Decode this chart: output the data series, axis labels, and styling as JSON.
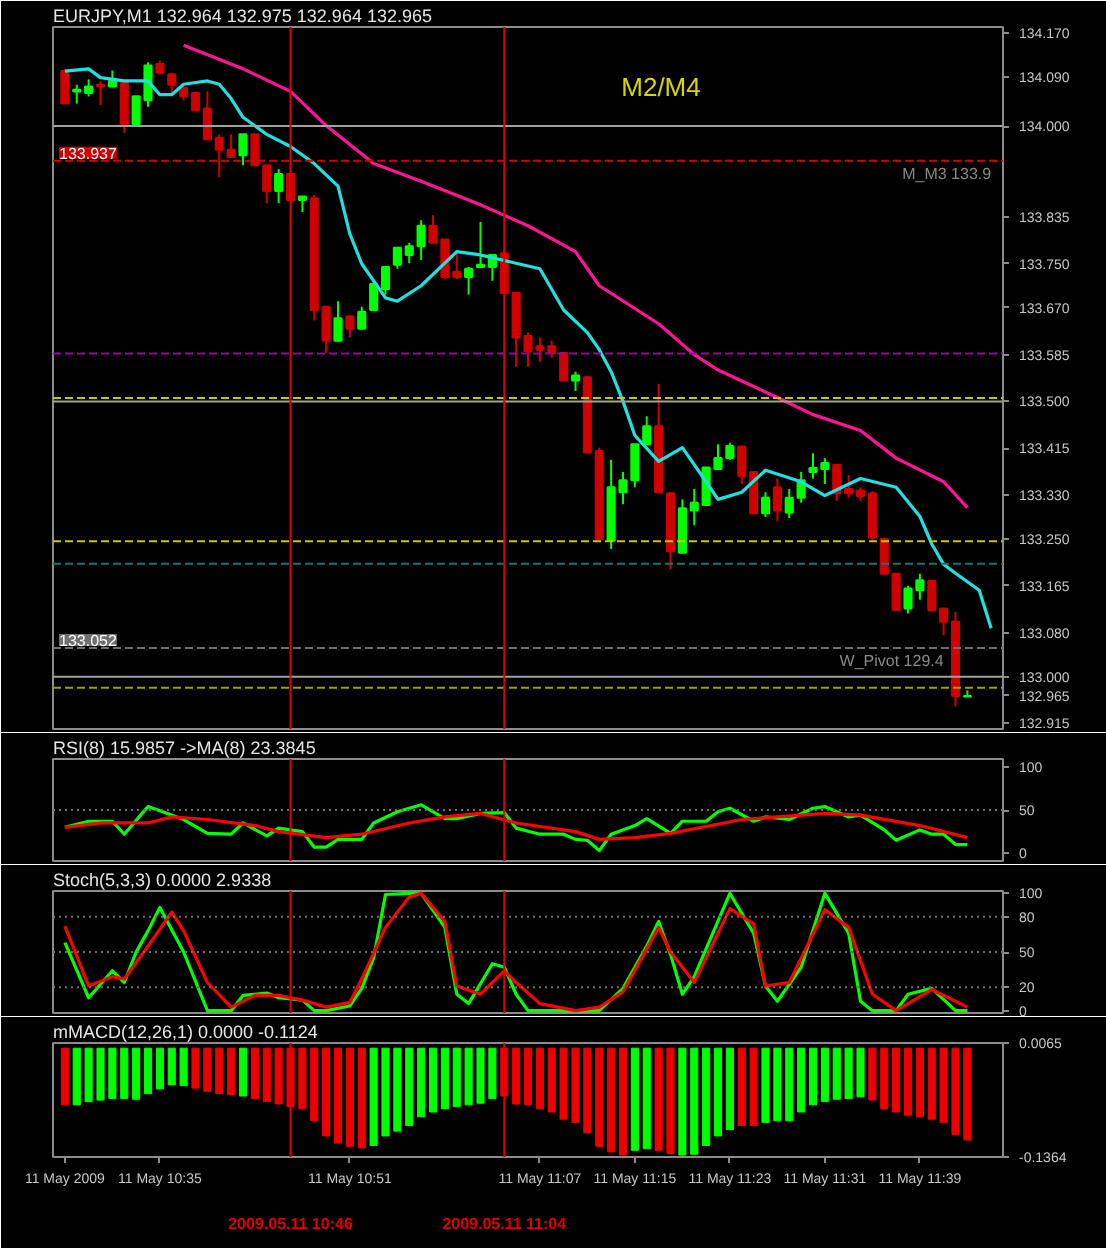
{
  "chart_data": [
    {
      "type": "candlestick",
      "title": "EURJPY,M1  132.964 132.975 132.964 132.965",
      "tick_labels": "y",
      "x": [
        "2009-05-11T10:27",
        "2009-05-11T10:28",
        "2009-05-11T10:29",
        "2009-05-11T10:30",
        "2009-05-11T10:31",
        "2009-05-11T10:32",
        "2009-05-11T10:33",
        "2009-05-11T10:34",
        "2009-05-11T10:35",
        "2009-05-11T10:36",
        "2009-05-11T10:37",
        "2009-05-11T10:38",
        "2009-05-11T10:39",
        "2009-05-11T10:40",
        "2009-05-11T10:41",
        "2009-05-11T10:42",
        "2009-05-11T10:43",
        "2009-05-11T10:44",
        "2009-05-11T10:45",
        "2009-05-11T10:46",
        "2009-05-11T10:47",
        "2009-05-11T10:48",
        "2009-05-11T10:49",
        "2009-05-11T10:50",
        "2009-05-11T10:51",
        "2009-05-11T10:52",
        "2009-05-11T10:53",
        "2009-05-11T10:54",
        "2009-05-11T10:55",
        "2009-05-11T10:56",
        "2009-05-11T10:57",
        "2009-05-11T10:58",
        "2009-05-11T10:59",
        "2009-05-11T11:00",
        "2009-05-11T11:01",
        "2009-05-11T11:02",
        "2009-05-11T11:03",
        "2009-05-11T11:04",
        "2009-05-11T11:05",
        "2009-05-11T11:06",
        "2009-05-11T11:07",
        "2009-05-11T11:08",
        "2009-05-11T11:09",
        "2009-05-11T11:10",
        "2009-05-11T11:11",
        "2009-05-11T11:12",
        "2009-05-11T11:13",
        "2009-05-11T11:14",
        "2009-05-11T11:15",
        "2009-05-11T11:16",
        "2009-05-11T11:17",
        "2009-05-11T11:18",
        "2009-05-11T11:19",
        "2009-05-11T11:20",
        "2009-05-11T11:21",
        "2009-05-11T11:22",
        "2009-05-11T11:23",
        "2009-05-11T11:24",
        "2009-05-11T11:25",
        "2009-05-11T11:26",
        "2009-05-11T11:27",
        "2009-05-11T11:28",
        "2009-05-11T11:29",
        "2009-05-11T11:30",
        "2009-05-11T11:31",
        "2009-05-11T11:32",
        "2009-05-11T11:33",
        "2009-05-11T11:34",
        "2009-05-11T11:35",
        "2009-05-11T11:36",
        "2009-05-11T11:37",
        "2009-05-11T11:38",
        "2009-05-11T11:39",
        "2009-05-11T11:40",
        "2009-05-11T11:41",
        "2009-05-11T11:42",
        "2009-05-11T11:43"
      ],
      "ohlc": [
        [
          134.1,
          134.103,
          134.041,
          134.041
        ],
        [
          134.063,
          134.075,
          134.041,
          134.066
        ],
        [
          134.06,
          134.085,
          134.054,
          134.072
        ],
        [
          134.075,
          134.082,
          134.038,
          134.072
        ],
        [
          134.072,
          134.101,
          134.072,
          134.082
        ],
        [
          134.079,
          134.079,
          133.988,
          134.004
        ],
        [
          134.004,
          134.054,
          134.001,
          134.054
        ],
        [
          134.047,
          134.116,
          134.035,
          134.11
        ],
        [
          134.113,
          134.119,
          134.094,
          134.097
        ],
        [
          134.094,
          134.097,
          134.06,
          134.075
        ],
        [
          134.069,
          134.072,
          134.047,
          134.054
        ],
        [
          134.06,
          134.063,
          134.029,
          134.029
        ],
        [
          134.032,
          134.063,
          133.976,
          133.976
        ],
        [
          133.979,
          133.985,
          133.907,
          133.957
        ],
        [
          133.957,
          133.985,
          133.944,
          133.944
        ],
        [
          133.947,
          133.985,
          133.929,
          133.985
        ],
        [
          133.985,
          133.985,
          133.929,
          133.929
        ],
        [
          133.929,
          133.929,
          133.86,
          133.882
        ],
        [
          133.882,
          133.922,
          133.86,
          133.913
        ],
        [
          133.913,
          133.913,
          133.866,
          133.866
        ],
        [
          133.866,
          133.872,
          133.844,
          133.872
        ],
        [
          133.869,
          133.875,
          133.647,
          133.666
        ],
        [
          133.672,
          133.672,
          133.588,
          133.61
        ],
        [
          133.61,
          133.682,
          133.61,
          133.651
        ],
        [
          133.654,
          133.657,
          133.616,
          133.632
        ],
        [
          133.632,
          133.672,
          133.632,
          133.663
        ],
        [
          133.666,
          133.713,
          133.666,
          133.713
        ],
        [
          133.704,
          133.744,
          133.694,
          133.744
        ],
        [
          133.748,
          133.779,
          133.741,
          133.779
        ],
        [
          133.766,
          133.788,
          133.751,
          133.782
        ],
        [
          133.782,
          133.829,
          133.757,
          133.819
        ],
        [
          133.819,
          133.838,
          133.788,
          133.788
        ],
        [
          133.794,
          133.794,
          133.722,
          133.726
        ],
        [
          133.735,
          133.772,
          133.722,
          133.726
        ],
        [
          133.726,
          133.744,
          133.694,
          133.741
        ],
        [
          133.744,
          133.826,
          133.744,
          133.748
        ],
        [
          133.744,
          133.766,
          133.719,
          133.766
        ],
        [
          133.769,
          133.769,
          133.697,
          133.697
        ],
        [
          133.697,
          133.697,
          133.563,
          133.616
        ],
        [
          133.619,
          133.625,
          133.563,
          133.591
        ],
        [
          133.6,
          133.616,
          133.572,
          133.594
        ],
        [
          133.6,
          133.61,
          133.579,
          133.588
        ],
        [
          133.588,
          133.588,
          133.538,
          133.538
        ],
        [
          133.538,
          133.554,
          133.519,
          133.547
        ],
        [
          133.544,
          133.544,
          133.407,
          133.407
        ],
        [
          133.41,
          133.416,
          133.25,
          133.25
        ],
        [
          133.247,
          133.394,
          133.232,
          133.344
        ],
        [
          133.335,
          133.372,
          133.313,
          133.357
        ],
        [
          133.357,
          133.422,
          133.344,
          133.422
        ],
        [
          133.422,
          133.473,
          133.422,
          133.455
        ],
        [
          133.455,
          133.532,
          133.335,
          133.335
        ],
        [
          133.333,
          133.333,
          133.195,
          133.228
        ],
        [
          133.225,
          133.322,
          133.225,
          133.306
        ],
        [
          133.302,
          133.341,
          133.275,
          133.316
        ],
        [
          133.312,
          133.38,
          133.312,
          133.38
        ],
        [
          133.377,
          133.422,
          133.377,
          133.397
        ],
        [
          133.397,
          133.425,
          133.394,
          133.419
        ],
        [
          133.418,
          133.418,
          133.35,
          133.364
        ],
        [
          133.372,
          133.372,
          133.297,
          133.297
        ],
        [
          133.297,
          133.335,
          133.29,
          133.325
        ],
        [
          133.344,
          133.36,
          133.282,
          133.302
        ],
        [
          133.298,
          133.341,
          133.288,
          133.325
        ],
        [
          133.325,
          133.372,
          133.316,
          133.357
        ],
        [
          133.372,
          133.406,
          133.36,
          133.379
        ],
        [
          133.377,
          133.397,
          133.35,
          133.388
        ],
        [
          133.385,
          133.385,
          133.319,
          133.333
        ],
        [
          133.341,
          133.366,
          133.325,
          133.333
        ],
        [
          133.338,
          133.344,
          133.319,
          133.328
        ],
        [
          133.333,
          133.337,
          133.245,
          133.253
        ],
        [
          133.25,
          133.25,
          133.187,
          133.187
        ],
        [
          133.187,
          133.187,
          133.121,
          133.121
        ],
        [
          133.124,
          133.165,
          133.115,
          133.16
        ],
        [
          133.157,
          133.187,
          133.14,
          133.175
        ],
        [
          133.174,
          133.174,
          133.121,
          133.121
        ],
        [
          133.124,
          133.124,
          133.075,
          133.1
        ],
        [
          133.1,
          133.118,
          132.946,
          132.965
        ],
        [
          132.964,
          132.975,
          132.964,
          132.965
        ]
      ],
      "colors": [
        "#d00000",
        "#00ff00",
        "#00ff00",
        "#d00000",
        "#00ff00",
        "#d00000",
        "#00ff00",
        "#00ff00",
        "#d00000",
        "#d00000",
        "#d00000",
        "#d00000",
        "#d00000",
        "#d00000",
        "#d00000",
        "#00ff00",
        "#d00000",
        "#d00000",
        "#00ff00",
        "#d00000",
        "#00ff00",
        "#d00000",
        "#d00000",
        "#00ff00",
        "#d00000",
        "#00ff00",
        "#00ff00",
        "#00ff00",
        "#00ff00",
        "#00ff00",
        "#00ff00",
        "#d00000",
        "#d00000",
        "#d00000",
        "#00ff00",
        "#00ff00",
        "#00ff00",
        "#d00000",
        "#d00000",
        "#d00000",
        "#d00000",
        "#d00000",
        "#d00000",
        "#00ff00",
        "#d00000",
        "#d00000",
        "#00ff00",
        "#00ff00",
        "#00ff00",
        "#00ff00",
        "#d00000",
        "#d00000",
        "#00ff00",
        "#00ff00",
        "#00ff00",
        "#00ff00",
        "#00ff00",
        "#d00000",
        "#d00000",
        "#00ff00",
        "#d00000",
        "#00ff00",
        "#00ff00",
        "#00ff00",
        "#00ff00",
        "#d00000",
        "#d00000",
        "#d00000",
        "#d00000",
        "#d00000",
        "#d00000",
        "#00ff00",
        "#00ff00",
        "#d00000",
        "#d00000",
        "#d00000",
        "#00ff00"
      ],
      "series": [
        {
          "type": "line",
          "color": "#20e0e0",
          "x": [
            "2009-05-11T10:27",
            "2009-05-11T10:29",
            "2009-05-11T10:30",
            "2009-05-11T10:32",
            "2009-05-11T10:34",
            "2009-05-11T10:35",
            "2009-05-11T10:36",
            "2009-05-11T10:37",
            "2009-05-11T10:39",
            "2009-05-11T10:40",
            "2009-05-11T10:41",
            "2009-05-11T10:42",
            "2009-05-11T10:44",
            "2009-05-11T10:46",
            "2009-05-11T10:48",
            "2009-05-11T10:50",
            "2009-05-11T10:51",
            "2009-05-11T10:52",
            "2009-05-11T10:54",
            "2009-05-11T10:55",
            "2009-05-11T10:57",
            "2009-05-11T11:00",
            "2009-05-11T11:02",
            "2009-05-11T11:05",
            "2009-05-11T11:07",
            "2009-05-11T11:09",
            "2009-05-11T11:11",
            "2009-05-11T11:12",
            "2009-05-11T11:13",
            "2009-05-11T11:14",
            "2009-05-11T11:15",
            "2009-05-11T11:17",
            "2009-05-11T11:19",
            "2009-05-11T11:21",
            "2009-05-11T11:22",
            "2009-05-11T11:24",
            "2009-05-11T11:26",
            "2009-05-11T11:29",
            "2009-05-11T11:31",
            "2009-05-11T11:34",
            "2009-05-11T11:37",
            "2009-05-11T11:39",
            "2009-05-11T11:40",
            "2009-05-11T11:41",
            "2009-05-11T11:42",
            "2009-05-11T11:44",
            "2009-05-11T11:45"
          ],
          "values": [
            134.1,
            134.104,
            134.088,
            134.082,
            134.082,
            134.057,
            134.057,
            134.076,
            134.082,
            134.076,
            134.05,
            134.016,
            133.985,
            133.963,
            133.932,
            133.891,
            133.804,
            133.75,
            133.688,
            133.682,
            133.71,
            133.772,
            133.766,
            133.751,
            133.741,
            133.666,
            133.625,
            133.594,
            133.554,
            133.5,
            133.438,
            133.391,
            133.416,
            133.354,
            133.322,
            133.335,
            133.375,
            133.354,
            133.329,
            133.36,
            133.344,
            133.291,
            133.241,
            133.204,
            133.188,
            133.157,
            133.088
          ]
        },
        {
          "type": "line",
          "color": "#ff1493",
          "x": [
            "2009-05-11T10:37",
            "2009-05-11T10:42",
            "2009-05-11T10:46",
            "2009-05-11T10:49",
            "2009-05-11T10:53",
            "2009-05-11T10:57",
            "2009-05-11T11:02",
            "2009-05-11T11:06",
            "2009-05-11T11:10",
            "2009-05-11T11:12",
            "2009-05-11T11:17",
            "2009-05-11T11:20",
            "2009-05-11T11:22",
            "2009-05-11T11:27",
            "2009-05-11T11:30",
            "2009-05-11T11:34",
            "2009-05-11T11:37",
            "2009-05-11T11:41",
            "2009-05-11T11:43"
          ],
          "values": [
            134.147,
            134.104,
            134.063,
            134.001,
            133.932,
            133.9,
            133.857,
            133.819,
            133.772,
            133.71,
            133.641,
            133.585,
            133.557,
            133.507,
            133.476,
            133.447,
            133.397,
            133.354,
            133.307
          ]
        }
      ],
      "xlim": [
        "2009-05-11T10:26",
        "2009-05-11T11:46"
      ],
      "ylim": [
        132.905,
        134.18
      ],
      "yticks": [
        {
          "value": 134.17,
          "label": "134.170"
        },
        {
          "value": 134.09,
          "label": "134.090"
        },
        {
          "value": 134.0,
          "label": "134.000"
        },
        {
          "value": 133.835,
          "label": "133.835"
        },
        {
          "value": 133.75,
          "label": "133.750"
        },
        {
          "value": 133.67,
          "label": "133.670"
        },
        {
          "value": 133.585,
          "label": "133.585"
        },
        {
          "value": 133.5,
          "label": "133.500"
        },
        {
          "value": 133.415,
          "label": "133.415"
        },
        {
          "value": 133.33,
          "label": "133.330"
        },
        {
          "value": 133.25,
          "label": "133.250"
        },
        {
          "value": 133.165,
          "label": "133.165"
        },
        {
          "value": 133.08,
          "label": "133.080"
        },
        {
          "value": 133.0,
          "label": "133.000"
        },
        {
          "value": 132.965,
          "label": "132.965"
        },
        {
          "value": 132.915,
          "label": "132.915"
        }
      ],
      "ref_lines": [
        {
          "axis": "y",
          "value": 134.0,
          "color": "#a0a0a0",
          "line_style": "solid"
        },
        {
          "axis": "y",
          "value": 133.5,
          "color": "#a0a0a0",
          "line_style": "solid"
        },
        {
          "axis": "y",
          "value": 133.0,
          "color": "#a0a0a0",
          "line_style": "solid"
        },
        {
          "axis": "y",
          "value": 133.937,
          "label": "133.937",
          "color": "#d00000",
          "line_style": "dashed"
        },
        {
          "axis": "y",
          "value": 133.587,
          "color": "#a000a0",
          "line_style": "dashed"
        },
        {
          "axis": "y",
          "value": 133.506,
          "color": "#c8c800",
          "line_style": "dashed"
        },
        {
          "axis": "y",
          "value": 133.246,
          "color": "#c8c800",
          "line_style": "dashed"
        },
        {
          "axis": "y",
          "value": 133.205,
          "color": "#207070",
          "line_style": "dashed"
        },
        {
          "axis": "y",
          "value": 133.052,
          "label": "133.052",
          "color": "#707070",
          "line_style": "dashed"
        },
        {
          "axis": "y",
          "value": 132.98,
          "color": "#a0a000",
          "line_style": "dashed"
        },
        {
          "axis": "x",
          "value": "2009-05-11T10:46",
          "color": "#e00000",
          "line_style": "solid"
        },
        {
          "axis": "x",
          "value": "2009-05-11T11:04",
          "color": "#e00000",
          "line_style": "solid"
        }
      ],
      "annotations": [
        "M2/M4",
        {
          "text": "M_M3 133.9",
          "x": "2009-05-11T11:45",
          "y": 133.93
        },
        {
          "text": "W_Pivot 129.4",
          "x": "2009-05-11T11:41",
          "y": 133.045
        }
      ]
    },
    {
      "type": "line",
      "title": "RSI(8) 15.9857  ->MA(8) 23.3845",
      "tick_labels": "y",
      "xlim": [
        "2009-05-11T10:26",
        "2009-05-11T11:46"
      ],
      "ylim": [
        -9,
        109
      ],
      "yticks": [
        0,
        50,
        100
      ],
      "series": [
        {
          "color": "#00ff00",
          "x": [
            "2009-05-11T10:27",
            "2009-05-11T10:29",
            "2009-05-11T10:31",
            "2009-05-11T10:32",
            "2009-05-11T10:34",
            "2009-05-11T10:35",
            "2009-05-11T10:37",
            "2009-05-11T10:39",
            "2009-05-11T10:41",
            "2009-05-11T10:42",
            "2009-05-11T10:44",
            "2009-05-11T10:45",
            "2009-05-11T10:47",
            "2009-05-11T10:48",
            "2009-05-11T10:49",
            "2009-05-11T10:50",
            "2009-05-11T10:52",
            "2009-05-11T10:53",
            "2009-05-11T10:55",
            "2009-05-11T10:57",
            "2009-05-11T10:59",
            "2009-05-11T11:00",
            "2009-05-11T11:02",
            "2009-05-11T11:04",
            "2009-05-11T11:05",
            "2009-05-11T11:07",
            "2009-05-11T11:09",
            "2009-05-11T11:10",
            "2009-05-11T11:11",
            "2009-05-11T11:12",
            "2009-05-11T11:13",
            "2009-05-11T11:15",
            "2009-05-11T11:16",
            "2009-05-11T11:18",
            "2009-05-11T11:19",
            "2009-05-11T11:21",
            "2009-05-11T11:22",
            "2009-05-11T11:23",
            "2009-05-11T11:25",
            "2009-05-11T11:26",
            "2009-05-11T11:28",
            "2009-05-11T11:30",
            "2009-05-11T11:31",
            "2009-05-11T11:33",
            "2009-05-11T11:34",
            "2009-05-11T11:36",
            "2009-05-11T11:37",
            "2009-05-11T11:39",
            "2009-05-11T11:40",
            "2009-05-11T11:41",
            "2009-05-11T11:42",
            "2009-05-11T11:43"
          ],
          "values": [
            30,
            37,
            37,
            22,
            54,
            49,
            39,
            23,
            22,
            35,
            20,
            29,
            25,
            7,
            7,
            16,
            16,
            35,
            48,
            56,
            40,
            40,
            46,
            47,
            29,
            22,
            22,
            16,
            15,
            3,
            22,
            32,
            40,
            23,
            37,
            37,
            48,
            52,
            37,
            42,
            39,
            52,
            54,
            42,
            44,
            27,
            15,
            27,
            22,
            22,
            10,
            10
          ]
        },
        {
          "color": "#ff0000",
          "x": [
            "2009-05-11T10:27",
            "2009-05-11T10:30",
            "2009-05-11T10:34",
            "2009-05-11T10:36",
            "2009-05-11T10:39",
            "2009-05-11T10:43",
            "2009-05-11T10:45",
            "2009-05-11T10:49",
            "2009-05-11T10:52",
            "2009-05-11T10:56",
            "2009-05-11T10:59",
            "2009-05-11T11:02",
            "2009-05-11T11:05",
            "2009-05-11T11:10",
            "2009-05-11T11:12",
            "2009-05-11T11:15",
            "2009-05-11T11:18",
            "2009-05-11T11:24",
            "2009-05-11T11:27",
            "2009-05-11T11:31",
            "2009-05-11T11:34",
            "2009-05-11T11:39",
            "2009-05-11T11:43"
          ],
          "values": [
            30,
            35,
            35,
            42,
            39,
            32,
            25,
            18,
            22,
            35,
            42,
            46,
            35,
            25,
            16,
            18,
            23,
            39,
            42,
            46,
            44,
            32,
            18
          ]
        }
      ],
      "ref_lines": [
        {
          "axis": "y",
          "value": 50,
          "color": "#707060",
          "line_style": "dotted"
        },
        {
          "axis": "x",
          "value": "2009-05-11T10:46",
          "color": "#e00000",
          "line_style": "solid"
        },
        {
          "axis": "x",
          "value": "2009-05-11T11:04",
          "color": "#e00000",
          "line_style": "solid"
        }
      ]
    },
    {
      "type": "line",
      "title": "Stoch(5,3,3) 0.0000 2.9338",
      "tick_labels": "y",
      "xlim": [
        "2009-05-11T10:26",
        "2009-05-11T11:46"
      ],
      "ylim": [
        -2,
        102
      ],
      "yticks": [
        0,
        20,
        50,
        80,
        100
      ],
      "series": [
        {
          "color": "#00ff00",
          "x": [
            "2009-05-11T10:27",
            "2009-05-11T10:29",
            "2009-05-11T10:31",
            "2009-05-11T10:32",
            "2009-05-11T10:33",
            "2009-05-11T10:34",
            "2009-05-11T10:35",
            "2009-05-11T10:37",
            "2009-05-11T10:39",
            "2009-05-11T10:41",
            "2009-05-11T10:42",
            "2009-05-11T10:44",
            "2009-05-11T10:45",
            "2009-05-11T10:47",
            "2009-05-11T10:48",
            "2009-05-11T10:49",
            "2009-05-11T10:51",
            "2009-05-11T10:52",
            "2009-05-11T10:53",
            "2009-05-11T10:54",
            "2009-05-11T10:56",
            "2009-05-11T10:57",
            "2009-05-11T10:59",
            "2009-05-11T11:00",
            "2009-05-11T11:01",
            "2009-05-11T11:03",
            "2009-05-11T11:04",
            "2009-05-11T11:05",
            "2009-05-11T11:06",
            "2009-05-11T11:10",
            "2009-05-11T11:12",
            "2009-05-11T11:14",
            "2009-05-11T11:16",
            "2009-05-11T11:17",
            "2009-05-11T11:18",
            "2009-05-11T11:19",
            "2009-05-11T11:20",
            "2009-05-11T11:23",
            "2009-05-11T11:25",
            "2009-05-11T11:26",
            "2009-05-11T11:27",
            "2009-05-11T11:29",
            "2009-05-11T11:31",
            "2009-05-11T11:33",
            "2009-05-11T11:34",
            "2009-05-11T11:35",
            "2009-05-11T11:37",
            "2009-05-11T11:38",
            "2009-05-11T11:40",
            "2009-05-11T11:42",
            "2009-05-11T11:43"
          ],
          "values": [
            58,
            11,
            34,
            24,
            50,
            68,
            88,
            50,
            0,
            0,
            13,
            15,
            11,
            9,
            0,
            0,
            4,
            19,
            45,
            99,
            100,
            100,
            71,
            14,
            6,
            40,
            37,
            14,
            0,
            0,
            0,
            19,
            55,
            76,
            48,
            14,
            29,
            100,
            66,
            21,
            8,
            37,
            100,
            66,
            8,
            0,
            0,
            14,
            19,
            0,
            0
          ]
        },
        {
          "color": "#ff0000",
          "x": [
            "2009-05-11T10:27",
            "2009-05-11T10:29",
            "2009-05-11T10:31",
            "2009-05-11T10:32",
            "2009-05-11T10:34",
            "2009-05-11T10:36",
            "2009-05-11T10:37",
            "2009-05-11T10:39",
            "2009-05-11T10:41",
            "2009-05-11T10:43",
            "2009-05-11T10:45",
            "2009-05-11T10:47",
            "2009-05-11T10:49",
            "2009-05-11T10:51",
            "2009-05-11T10:52",
            "2009-05-11T10:54",
            "2009-05-11T10:56",
            "2009-05-11T10:57",
            "2009-05-11T10:59",
            "2009-05-11T11:00",
            "2009-05-11T11:02",
            "2009-05-11T11:04",
            "2009-05-11T11:05",
            "2009-05-11T11:07",
            "2009-05-11T11:10",
            "2009-05-11T11:12",
            "2009-05-11T11:14",
            "2009-05-11T11:17",
            "2009-05-11T11:18",
            "2009-05-11T11:20",
            "2009-05-11T11:23",
            "2009-05-11T11:25",
            "2009-05-11T11:26",
            "2009-05-11T11:28",
            "2009-05-11T11:31",
            "2009-05-11T11:33",
            "2009-05-11T11:35",
            "2009-05-11T11:37",
            "2009-05-11T11:40",
            "2009-05-11T11:43"
          ],
          "values": [
            72,
            21,
            29,
            27,
            55,
            84,
            68,
            24,
            3,
            13,
            13,
            9,
            3,
            7,
            27,
            71,
            97,
            100,
            76,
            21,
            14,
            34,
            24,
            6,
            0,
            3,
            16,
            71,
            50,
            24,
            87,
            74,
            21,
            24,
            86,
            71,
            14,
            0,
            18,
            3
          ]
        }
      ],
      "ref_lines": [
        {
          "axis": "y",
          "value": 20,
          "color": "#707060",
          "line_style": "dotted"
        },
        {
          "axis": "y",
          "value": 50,
          "color": "#707060",
          "line_style": "dotted"
        },
        {
          "axis": "y",
          "value": 80,
          "color": "#707060",
          "line_style": "dotted"
        },
        {
          "axis": "x",
          "value": "2009-05-11T10:46",
          "color": "#e00000",
          "line_style": "solid"
        },
        {
          "axis": "x",
          "value": "2009-05-11T11:04",
          "color": "#e00000",
          "line_style": "solid"
        }
      ]
    },
    {
      "type": "bar",
      "title": "mMACD(12,26,1) 0.0000 -0.1124",
      "xlim": [
        "2009-05-11T10:26",
        "2009-05-11T11:46"
      ],
      "ylim": [
        -0.1364,
        0.0065
      ],
      "yticks": [
        0.0065,
        -0.1364
      ],
      "x": [
        "2009-05-11T10:27",
        "2009-05-11T10:28",
        "2009-05-11T10:29",
        "2009-05-11T10:30",
        "2009-05-11T10:31",
        "2009-05-11T10:32",
        "2009-05-11T10:33",
        "2009-05-11T10:34",
        "2009-05-11T10:35",
        "2009-05-11T10:36",
        "2009-05-11T10:37",
        "2009-05-11T10:38",
        "2009-05-11T10:39",
        "2009-05-11T10:40",
        "2009-05-11T10:41",
        "2009-05-11T10:42",
        "2009-05-11T10:43",
        "2009-05-11T10:44",
        "2009-05-11T10:45",
        "2009-05-11T10:46",
        "2009-05-11T10:47",
        "2009-05-11T10:48",
        "2009-05-11T10:49",
        "2009-05-11T10:50",
        "2009-05-11T10:51",
        "2009-05-11T10:52",
        "2009-05-11T10:53",
        "2009-05-11T10:54",
        "2009-05-11T10:55",
        "2009-05-11T10:56",
        "2009-05-11T10:57",
        "2009-05-11T10:58",
        "2009-05-11T10:59",
        "2009-05-11T11:00",
        "2009-05-11T11:01",
        "2009-05-11T11:02",
        "2009-05-11T11:03",
        "2009-05-11T11:04",
        "2009-05-11T11:05",
        "2009-05-11T11:06",
        "2009-05-11T11:07",
        "2009-05-11T11:08",
        "2009-05-11T11:09",
        "2009-05-11T11:10",
        "2009-05-11T11:11",
        "2009-05-11T11:12",
        "2009-05-11T11:13",
        "2009-05-11T11:14",
        "2009-05-11T11:15",
        "2009-05-11T11:16",
        "2009-05-11T11:17",
        "2009-05-11T11:18",
        "2009-05-11T11:19",
        "2009-05-11T11:20",
        "2009-05-11T11:21",
        "2009-05-11T11:22",
        "2009-05-11T11:23",
        "2009-05-11T11:24",
        "2009-05-11T11:25",
        "2009-05-11T11:26",
        "2009-05-11T11:27",
        "2009-05-11T11:28",
        "2009-05-11T11:29",
        "2009-05-11T11:30",
        "2009-05-11T11:31",
        "2009-05-11T11:32",
        "2009-05-11T11:33",
        "2009-05-11T11:34",
        "2009-05-11T11:35",
        "2009-05-11T11:36",
        "2009-05-11T11:37",
        "2009-05-11T11:38",
        "2009-05-11T11:39",
        "2009-05-11T11:40",
        "2009-05-11T11:41",
        "2009-05-11T11:42",
        "2009-05-11T11:43"
      ],
      "values": [
        -0.071,
        -0.071,
        -0.067,
        -0.065,
        -0.063,
        -0.063,
        -0.064,
        -0.057,
        -0.051,
        -0.046,
        -0.047,
        -0.05,
        -0.054,
        -0.057,
        -0.058,
        -0.06,
        -0.063,
        -0.067,
        -0.07,
        -0.073,
        -0.076,
        -0.091,
        -0.11,
        -0.119,
        -0.123,
        -0.125,
        -0.122,
        -0.11,
        -0.104,
        -0.097,
        -0.086,
        -0.08,
        -0.076,
        -0.073,
        -0.071,
        -0.069,
        -0.063,
        -0.06,
        -0.07,
        -0.071,
        -0.076,
        -0.08,
        -0.089,
        -0.093,
        -0.106,
        -0.123,
        -0.13,
        -0.134,
        -0.128,
        -0.126,
        -0.128,
        -0.132,
        -0.134,
        -0.133,
        -0.122,
        -0.11,
        -0.102,
        -0.097,
        -0.097,
        -0.093,
        -0.091,
        -0.091,
        -0.08,
        -0.071,
        -0.067,
        -0.064,
        -0.063,
        -0.061,
        -0.065,
        -0.076,
        -0.08,
        -0.084,
        -0.086,
        -0.089,
        -0.093,
        -0.108,
        -0.115
      ],
      "colors": [
        "#ee0000",
        "#00ff00",
        "#00ff00",
        "#00ff00",
        "#00ff00",
        "#00ff00",
        "#00ff00",
        "#00ff00",
        "#00ff00",
        "#00ff00",
        "#00ff00",
        "#ee0000",
        "#ee0000",
        "#ee0000",
        "#ee0000",
        "#00ff00",
        "#ee0000",
        "#ee0000",
        "#ee0000",
        "#ee0000",
        "#ee0000",
        "#ee0000",
        "#ee0000",
        "#ee0000",
        "#ee0000",
        "#ee0000",
        "#00ff00",
        "#00ff00",
        "#00ff00",
        "#00ff00",
        "#00ff00",
        "#00ff00",
        "#00ff00",
        "#00ff00",
        "#00ff00",
        "#00ff00",
        "#00ff00",
        "#ee0000",
        "#ee0000",
        "#ee0000",
        "#ee0000",
        "#ee0000",
        "#ee0000",
        "#ee0000",
        "#ee0000",
        "#ee0000",
        "#ee0000",
        "#ee0000",
        "#00ff00",
        "#00ff00",
        "#ee0000",
        "#ee0000",
        "#00ff00",
        "#00ff00",
        "#00ff00",
        "#00ff00",
        "#00ff00",
        "#ee0000",
        "#ee0000",
        "#00ff00",
        "#00ff00",
        "#00ff00",
        "#00ff00",
        "#00ff00",
        "#00ff00",
        "#00ff00",
        "#00ff00",
        "#00ff00",
        "#ee0000",
        "#ee0000",
        "#ee0000",
        "#ee0000",
        "#ee0000",
        "#ee0000",
        "#ee0000",
        "#ee0000",
        "#ee0000"
      ],
      "xticks": [
        {
          "value": "2009-05-11T10:27",
          "label": "11 May 2009"
        },
        {
          "value": "2009-05-11T10:35",
          "label": "11 May 10:35"
        },
        {
          "value": "2009-05-11T10:51",
          "label": "11 May 10:51"
        },
        {
          "value": "2009-05-11T11:07",
          "label": "11 May 11:07"
        },
        {
          "value": "2009-05-11T11:15",
          "label": "11 May 11:15"
        },
        {
          "value": "2009-05-11T11:23",
          "label": "11 May 11:23"
        },
        {
          "value": "2009-05-11T11:31",
          "label": "11 May 11:31"
        },
        {
          "value": "2009-05-11T11:39",
          "label": "11 May 11:39"
        }
      ],
      "ref_lines": [
        {
          "axis": "x",
          "value": "2009-05-11T10:46",
          "label": "2009.05.11 10:46",
          "color": "#e00000",
          "line_style": "solid"
        },
        {
          "axis": "x",
          "value": "2009-05-11T11:04",
          "label": "2009.05.11 11:04",
          "color": "#e00000",
          "line_style": "solid"
        }
      ]
    }
  ]
}
